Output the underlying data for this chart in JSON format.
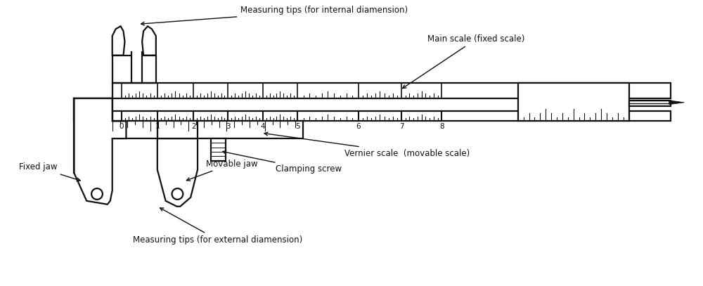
{
  "bg_color": "#ffffff",
  "line_color": "#111111",
  "lw": 1.6,
  "labels": {
    "measuring_tips_internal": "Measuring tips (for internal diamension)",
    "main_scale": "Main scale (fixed scale)",
    "vernier_scale": "Vernier scale  (movable scale)",
    "clamping_screw": "Clamping screw",
    "fixed_jaw": "Fixed jaw",
    "movable_jaw": "Movable jaw",
    "measuring_tips_external": "Measuring tips (for external diamension)"
  },
  "figsize": [
    10,
    4.07
  ],
  "dpi": 100
}
